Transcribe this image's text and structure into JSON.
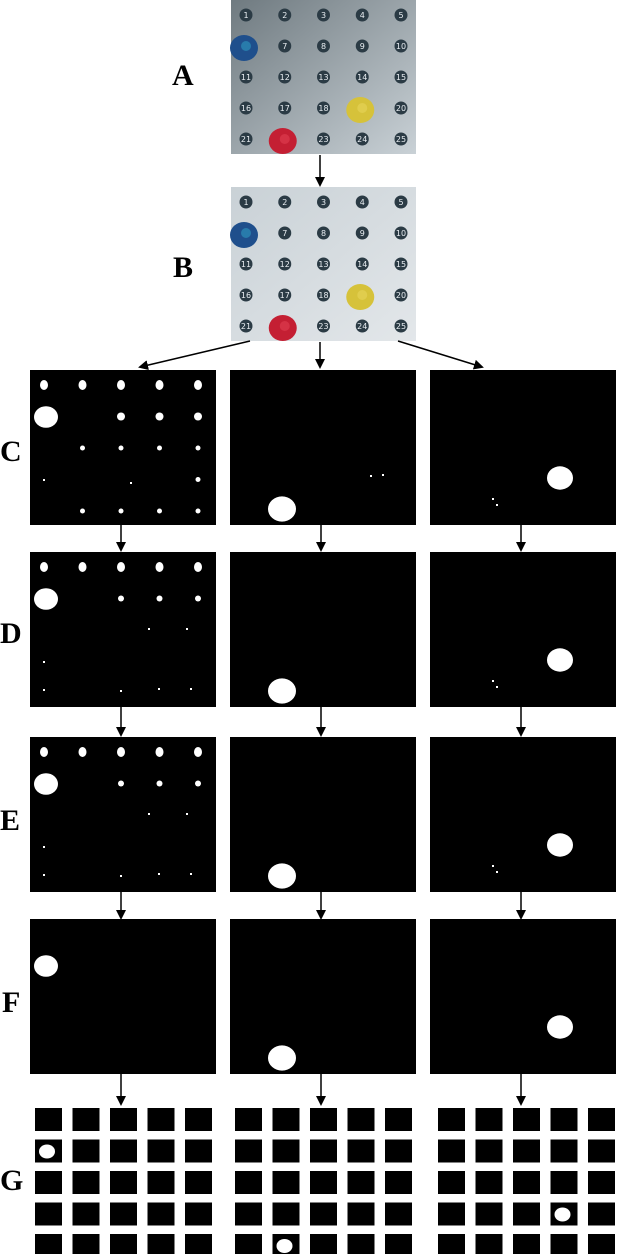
{
  "labels": {
    "A": "A",
    "B": "B",
    "C": "C",
    "D": "D",
    "E": "E",
    "F": "F",
    "G": "G"
  },
  "board": {
    "numbers": [
      "1",
      "2",
      "3",
      "4",
      "5",
      "6",
      "7",
      "8",
      "9",
      "10",
      "11",
      "12",
      "13",
      "14",
      "15",
      "16",
      "17",
      "18",
      "19",
      "20",
      "21",
      "22",
      "23",
      "24",
      "25"
    ],
    "pegs": [
      {
        "color_name": "blue",
        "position": 6,
        "color_a": "#1f4f8c",
        "color_b": "#2b86b3"
      },
      {
        "color_name": "yellow",
        "position": 19,
        "color_a": "#d6c23a",
        "color_b": "#e2cf52"
      },
      {
        "color_name": "red",
        "position": 22,
        "color_a": "#c41f33",
        "color_b": "#d9374a"
      }
    ],
    "background_a": "#6f7a80",
    "background_b": "#c9d1d6",
    "number_disk": "#2b3b45"
  },
  "colors": {
    "mask_background": "#000000",
    "mask_foreground": "#ffffff",
    "arrow": "#000000"
  },
  "pipeline_steps": [
    "C",
    "D",
    "E",
    "F",
    "G"
  ],
  "final_grid_positions": [
    6,
    22,
    19
  ]
}
